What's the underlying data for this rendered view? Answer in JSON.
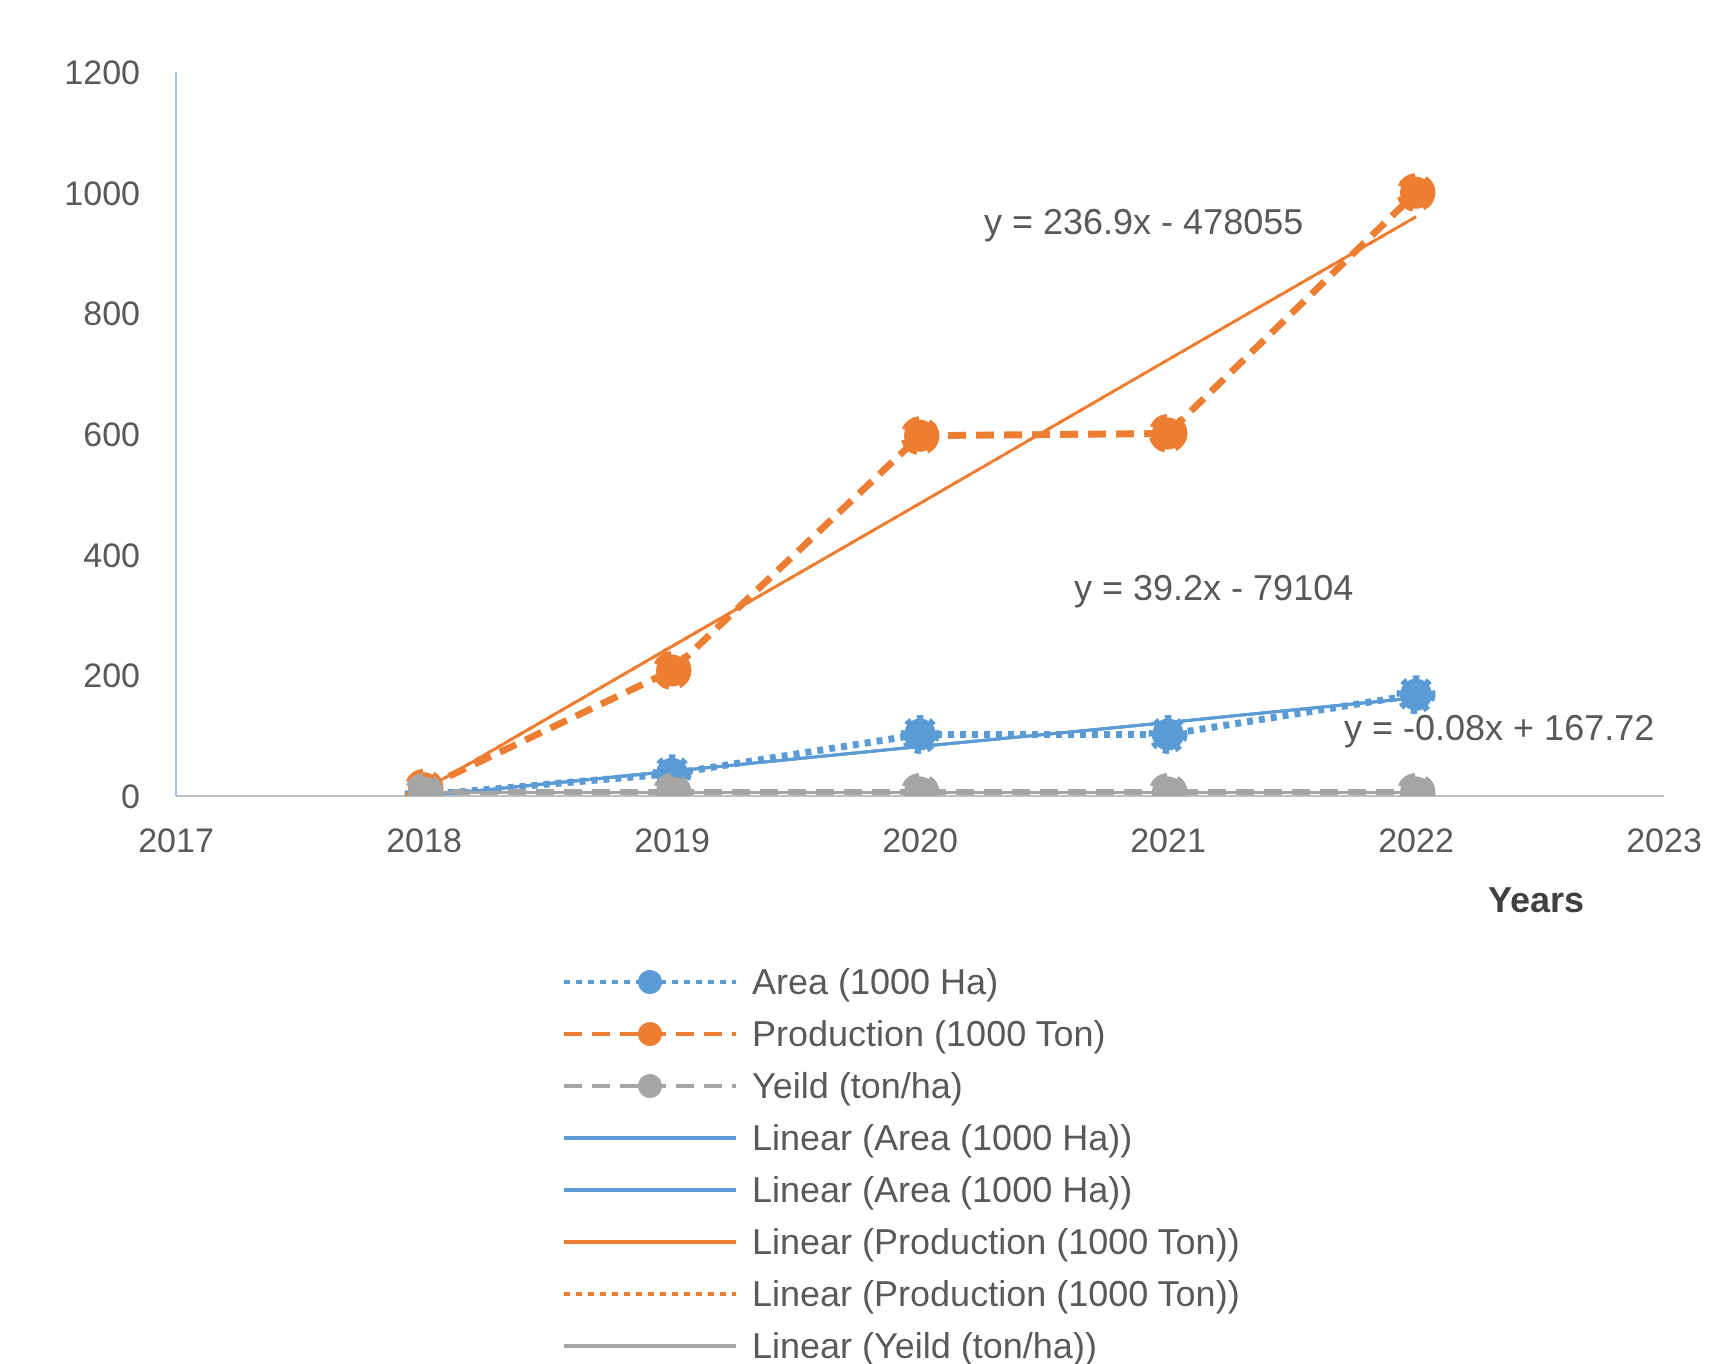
{
  "chart_data": {
    "type": "line",
    "xlabel": "Years",
    "x": [
      2018,
      2019,
      2020,
      2021,
      2022
    ],
    "series": [
      {
        "name": "Area (1000 Ha)",
        "color": "#5b9bd5",
        "values": [
          2,
          37,
          102,
          102,
          168
        ],
        "marker": "circle",
        "line_style": "dotted"
      },
      {
        "name": "Production (1000 Ton)",
        "color": "#ed7d31",
        "values": [
          13,
          208,
          597,
          601,
          1000
        ],
        "marker": "circle",
        "line_style": "dashed"
      },
      {
        "name": "Yeild (ton/ha)",
        "color": "#a5a5a5",
        "values": [
          6,
          6,
          6,
          6,
          6
        ],
        "marker": "circle",
        "line_style": "dashed"
      },
      {
        "name": "Linear (Area (1000 Ha))",
        "color": "#5b9bd5",
        "values": [
          0,
          41,
          82,
          122,
          163
        ],
        "marker": "none",
        "line_style": "solid"
      },
      {
        "name": "Linear (Area (1000 Ha))",
        "color": "#5b9bd5",
        "values": [
          0,
          41,
          82,
          122,
          163
        ],
        "marker": "none",
        "line_style": "solid"
      },
      {
        "name": "Linear (Production (1000 Ton))",
        "color": "#ed7d31",
        "values": [
          10,
          248,
          485,
          723,
          960
        ],
        "marker": "none",
        "line_style": "solid"
      },
      {
        "name": "Linear (Production (1000 Ton))",
        "color": "#ed7d31",
        "values": [
          10,
          248,
          485,
          723,
          960
        ],
        "marker": "none",
        "line_style": "dotted"
      },
      {
        "name": "Linear (Yeild (ton/ha))",
        "color": "#a5a5a5",
        "values": [
          6,
          6,
          6,
          6,
          6
        ],
        "marker": "none",
        "line_style": "solid"
      }
    ],
    "xlim": [
      2017,
      2023
    ],
    "xticks": [
      2017,
      2018,
      2019,
      2020,
      2021,
      2022,
      2023
    ],
    "ylim": [
      0,
      1200
    ],
    "yticks": [
      0,
      200,
      400,
      600,
      800,
      1000,
      1200
    ],
    "grid": false,
    "legend": "bottom",
    "annotations": [
      "y = 236.9x - 478055",
      "y = 39.2x - 79104",
      "y = -0.08x + 167.72"
    ]
  }
}
